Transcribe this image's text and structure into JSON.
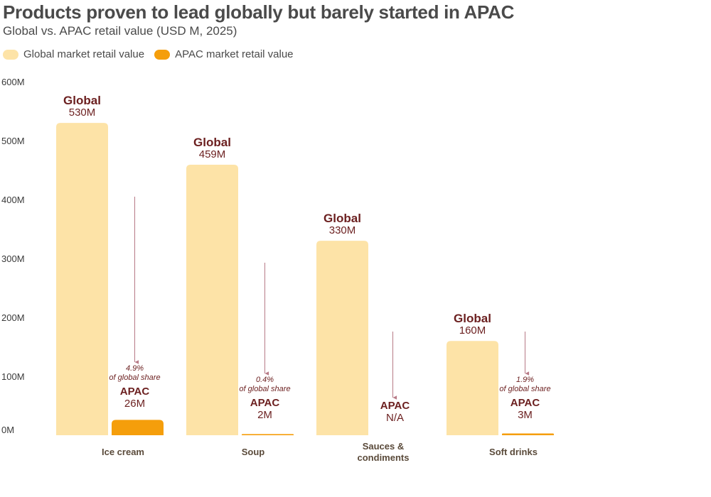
{
  "header": {
    "title": "Products proven to lead globally but barely started in APAC",
    "subtitle": "Global vs. APAC retail value (USD M, 2025)"
  },
  "legend": [
    {
      "label": "Global market retail value",
      "color": "#fde3a7"
    },
    {
      "label": "APAC market retail value",
      "color": "#f59e0b"
    }
  ],
  "chart_data": {
    "type": "bar",
    "ylim": [
      0,
      600
    ],
    "yticks": [
      {
        "value": 0,
        "label": "0M"
      },
      {
        "value": 100,
        "label": "100M"
      },
      {
        "value": 200,
        "label": "200M"
      },
      {
        "value": 300,
        "label": "300M"
      },
      {
        "value": 400,
        "label": "400M"
      },
      {
        "value": 500,
        "label": "500M"
      },
      {
        "value": 600,
        "label": "600M"
      }
    ],
    "grid": false,
    "legend_position": "top-left",
    "categories": [
      {
        "name": [
          "Ice cream"
        ],
        "global": 530,
        "global_tag": "Global",
        "global_label": "530M",
        "apac": 26,
        "apac_tag": "APAC",
        "apac_label": "26M",
        "share_pct": "4.9%",
        "share_text": "of global share"
      },
      {
        "name": [
          "Soup"
        ],
        "global": 459,
        "global_tag": "Global",
        "global_label": "459M",
        "apac": 2,
        "apac_tag": "APAC",
        "apac_label": "2M",
        "share_pct": "0.4%",
        "share_text": "of global share"
      },
      {
        "name": [
          "Sauces &",
          "condiments"
        ],
        "global": 330,
        "global_tag": "Global",
        "global_label": "330M",
        "apac": null,
        "apac_tag": "APAC",
        "apac_label": "N/A",
        "share_pct": "",
        "share_text": ""
      },
      {
        "name": [
          "Soft drinks"
        ],
        "global": 160,
        "global_tag": "Global",
        "global_label": "160M",
        "apac": 3,
        "apac_tag": "APAC",
        "apac_label": "3M",
        "share_pct": "1.9%",
        "share_text": "of global share"
      }
    ],
    "colors": {
      "global": "#fde3a7",
      "apac": "#f59e0b",
      "label_dark": "#6b1f1f",
      "arrow": "#b77a86",
      "axis_text": "#3a3a3a",
      "category_text": "#5a4a3a"
    }
  }
}
